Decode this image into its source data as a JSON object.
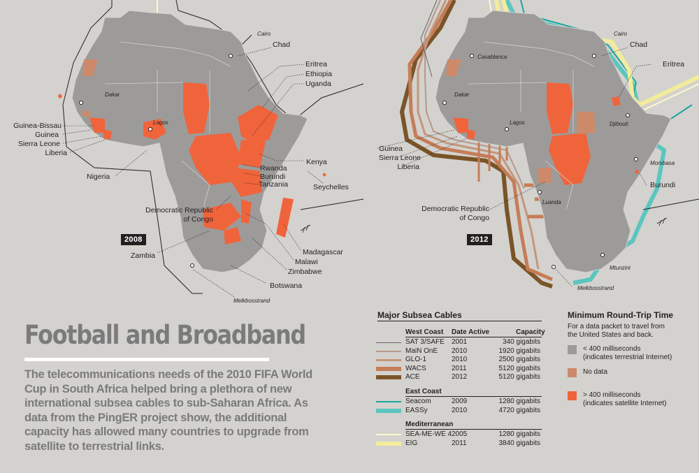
{
  "colors": {
    "background": "#d3d2ce",
    "terrestrial": "#9d9b99",
    "nodata": "#cc8a6b",
    "satellite": "#f0643c",
    "seacom": "#1aa6a0",
    "eassy": "#5bc5bf",
    "sat3": "#666666",
    "main_one": "#b7998a",
    "glo1": "#c4967c",
    "wacs": "#c57d57",
    "ace": "#7a5428",
    "seamewe4": "#fff7d0",
    "eig": "#f3ec9a"
  },
  "map2008": {
    "year": "2008",
    "cities": [
      "Cairo",
      "Dakar",
      "Lagos",
      "Melkbosstrand"
    ],
    "labels": {
      "chad": "Chad",
      "eritrea": "Eritrea",
      "ethiopia": "Ethiopia",
      "uganda": "Uganda",
      "guinea_bissau": "Guinea-Bissau",
      "guinea": "Guinea",
      "sierra_leone": "Sierra Leone",
      "liberia": "Liberia",
      "nigeria": "Nigeria",
      "kenya": "Kenya",
      "rwanda": "Rwanda",
      "burundi": "Burundi",
      "tanzania": "Tanzania",
      "seychelles": "Seychelles",
      "drc": "Democratic Republic",
      "drc2": "of Congo",
      "madagascar": "Madagascar",
      "malawi": "Malawi",
      "zimbabwe": "Zimbabwe",
      "zambia": "Zambia",
      "botswana": "Botswana"
    }
  },
  "map2012": {
    "year": "2012",
    "cities": [
      "Cairo",
      "Casablanca",
      "Dakar",
      "Lagos",
      "Djibouti",
      "Mombasa",
      "Luanda",
      "Mtunzini",
      "Melkbosstrand"
    ],
    "labels": {
      "chad": "Chad",
      "eritrea": "Eritrea",
      "guinea": "Guinea",
      "sierra_leone": "Sierra Leone",
      "liberia": "Liberia",
      "burundi": "Burundi",
      "drc": "Democratic Republic",
      "drc2": "of Congo"
    }
  },
  "article": {
    "title": "Football and Broadband",
    "body": "The telecommunications needs of the 2010 FIFA World Cup in South Africa helped bring a plethora of new international subsea cables to sub-Saharan Africa. As data from the PingER project show, the additional capacity has allowed many countries to upgrade from satellite to terrestrial links."
  },
  "cables_legend": {
    "title": "Major Subsea Cables",
    "col_date": "Date Active",
    "col_capacity": "Capacity",
    "groups": [
      {
        "name": "West Coast",
        "rows": [
          {
            "name": "SAT 3/SAFE",
            "date": "2001",
            "capacity": "340 gigabits",
            "color": "#666666",
            "width": 1
          },
          {
            "name": "MaiN OnE",
            "date": "2010",
            "capacity": "1920 gigabits",
            "color": "#b7998a",
            "width": 2
          },
          {
            "name": "GLO-1",
            "date": "2010",
            "capacity": "2500 gigabits",
            "color": "#c4967c",
            "width": 3
          },
          {
            "name": "WACS",
            "date": "2011",
            "capacity": "5120 gigabits",
            "color": "#c57d57",
            "width": 6
          },
          {
            "name": "ACE",
            "date": "2012",
            "capacity": "5120 gigabits",
            "color": "#7a5428",
            "width": 6
          }
        ]
      },
      {
        "name": "East Coast",
        "rows": [
          {
            "name": "Seacom",
            "date": "2009",
            "capacity": "1280 gigabits",
            "color": "#1aa6a0",
            "width": 2
          },
          {
            "name": "EASSy",
            "date": "2010",
            "capacity": "4720 gigabits",
            "color": "#5bc5bf",
            "width": 6
          }
        ]
      },
      {
        "name": "Mediterranean",
        "rows": [
          {
            "name": "SEA-ME-WE 4",
            "date": "2005",
            "capacity": "1280 gigabits",
            "color": "#fff7d0",
            "width": 2
          },
          {
            "name": "EIG",
            "date": "2011",
            "capacity": "3840 gigabits",
            "color": "#f3ec9a",
            "width": 6
          }
        ]
      }
    ]
  },
  "rtt_legend": {
    "title": "Minimum Round-Trip Time",
    "note": "For a data packet to travel from the United States and back.",
    "items": [
      {
        "line1": "< 400 milliseconds",
        "line2": "(indicates terrestrial Internet)",
        "color": "#9d9b99"
      },
      {
        "line1": "No data",
        "line2": "",
        "color": "#cc8a6b"
      },
      {
        "line1": "> 400 milliseconds",
        "line2": "(indicates satellite Internet)",
        "color": "#f0643c"
      }
    ]
  }
}
